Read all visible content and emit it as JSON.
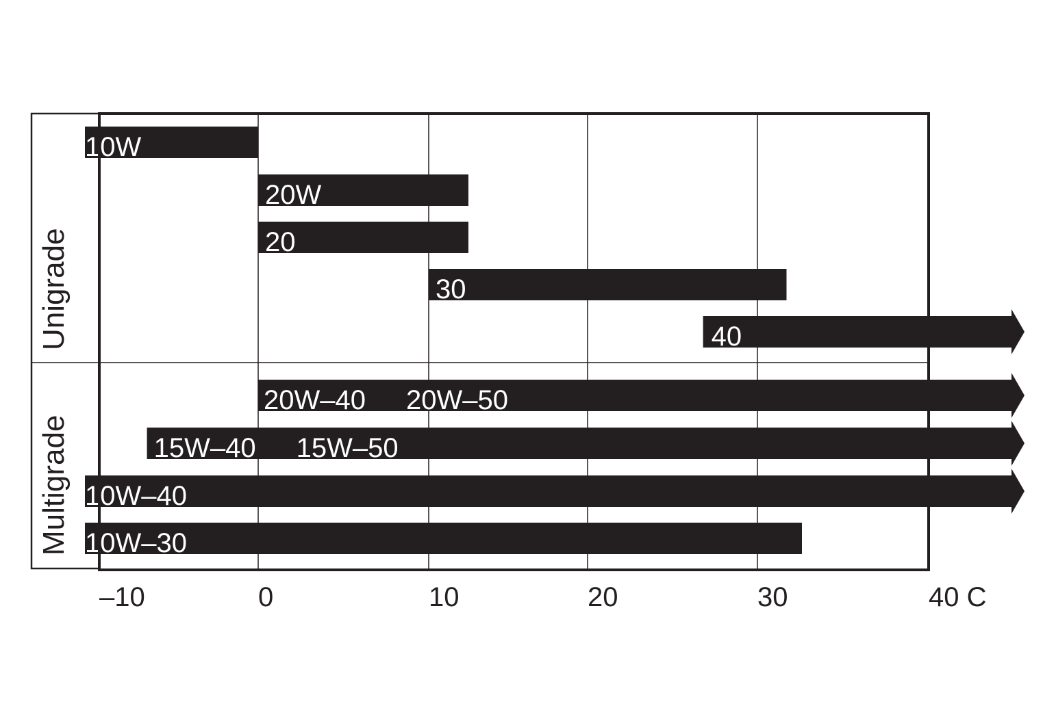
{
  "chart_data": {
    "type": "bar",
    "subtype": "range",
    "title": "",
    "xlabel": "",
    "ylabel": "",
    "xlim": [
      -10,
      40
    ],
    "x_ticks": [
      -10,
      0,
      10,
      20,
      30,
      40
    ],
    "x_tick_labels": [
      "–10",
      "0",
      "10",
      "20",
      "30",
      "40 C"
    ],
    "grid": true,
    "colors": {
      "bar": "#231f20",
      "bar_text": "#ffffff",
      "axis": "#231f20"
    },
    "groups": [
      {
        "name": "Unigrade",
        "rows": [
          0,
          1,
          2,
          3,
          4
        ]
      },
      {
        "name": "Multigrade",
        "rows": [
          5,
          6,
          7,
          8
        ]
      }
    ],
    "bars": [
      {
        "labels": [
          "10W"
        ],
        "start": -11,
        "end": 0,
        "open_ended": false
      },
      {
        "labels": [
          "20W"
        ],
        "start": 0,
        "end": 12.5,
        "open_ended": false
      },
      {
        "labels": [
          "20"
        ],
        "start": 0,
        "end": 12.5,
        "open_ended": false
      },
      {
        "labels": [
          "30"
        ],
        "start": 10,
        "end": 31.7,
        "open_ended": false
      },
      {
        "labels": [
          "40"
        ],
        "start": 26.8,
        "end": null,
        "open_ended": true
      },
      {
        "labels": [
          "20W–40",
          "20W–50"
        ],
        "start": 0,
        "end": null,
        "open_ended": true
      },
      {
        "labels": [
          "15W–40",
          "15W–50"
        ],
        "start": -7,
        "end": null,
        "open_ended": true
      },
      {
        "labels": [
          "10W–40"
        ],
        "start": -11,
        "end": null,
        "open_ended": true
      },
      {
        "labels": [
          "10W–30"
        ],
        "start": -11,
        "end": 32.6,
        "open_ended": false
      }
    ]
  }
}
